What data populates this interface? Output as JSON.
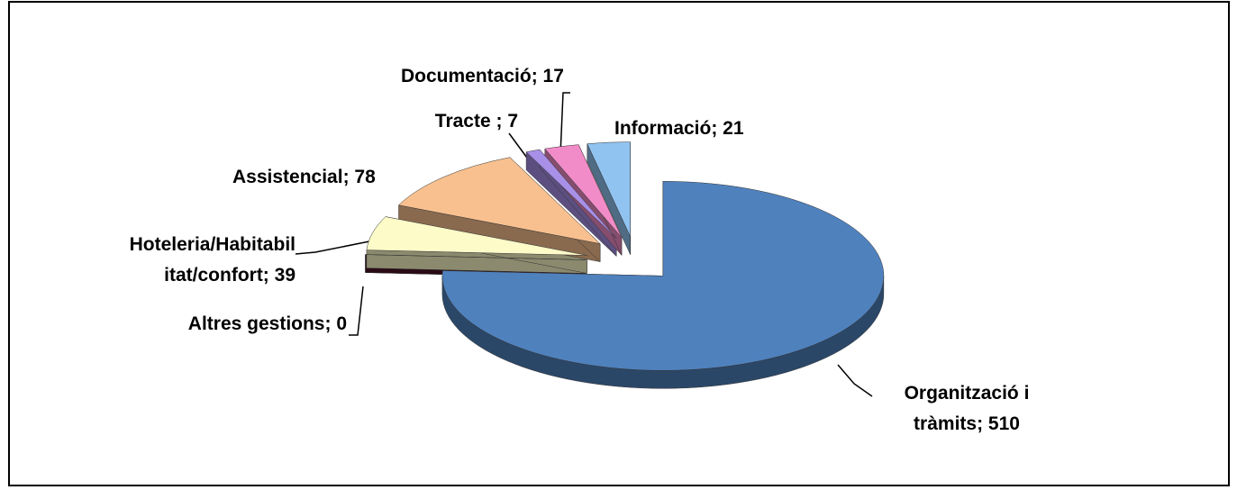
{
  "chart_data": {
    "type": "pie3d",
    "values": [
      510,
      0,
      39,
      78,
      7,
      17,
      21
    ],
    "value_labels": [
      "Organització i\ntràmits; 510",
      "Altres  gestions; 0",
      "Hoteleria/Habitabil\nitat/confort; 39",
      "Assistencial; 78",
      "Tracte ; 7",
      "Documentació; 17",
      "Informació; 21"
    ],
    "colors": [
      "#4f81bd",
      "#4a1226",
      "#fdfbc8",
      "#f9c08f",
      "#a890e8",
      "#f28cc8",
      "#91c3f0"
    ]
  }
}
